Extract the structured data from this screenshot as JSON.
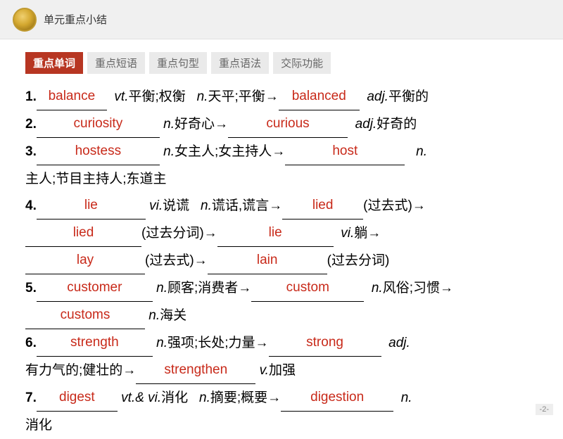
{
  "header": {
    "title": "单元重点小结"
  },
  "tabs": [
    {
      "label": "重点单词",
      "active": true
    },
    {
      "label": "重点短语",
      "active": false
    },
    {
      "label": "重点句型",
      "active": false
    },
    {
      "label": "重点语法",
      "active": false
    },
    {
      "label": "交际功能",
      "active": false
    }
  ],
  "colors": {
    "answer_color": "#c82a1a",
    "tab_active_bg": "#b73622",
    "tab_active_fg": "#ffffff",
    "tab_inactive_bg": "#eaeaea",
    "tab_inactive_fg": "#666666",
    "header_bg": "#f0f0f0",
    "text_color": "#000000"
  },
  "entries": {
    "e1": {
      "num": "1.",
      "ans1": "balance",
      "w1": 100,
      "pos1": "vt.",
      "def1": "平衡;权衡",
      "pos2": "n.",
      "def2": "天平;平衡→",
      "ans2": "balanced",
      "w2": 115,
      "pos3": "adj.",
      "def3": "平衡的"
    },
    "e2": {
      "num": "2.",
      "ans1": "curiosity",
      "w1": 175,
      "pos1": "n.",
      "def1": "好奇心→",
      "ans2": "curious",
      "w2": 170,
      "pos2": "adj.",
      "def2": "好奇的"
    },
    "e3": {
      "num": "3.",
      "ans1": "hostess",
      "w1": 175,
      "pos1": "n.",
      "def1": "女主人;女主持人→",
      "ans2": "host",
      "w2": 170,
      "pos2": "n.",
      "cont": "主人;节目主持人;东道主"
    },
    "e4": {
      "num": "4.",
      "ans1": "lie",
      "w1": 155,
      "pos1": "vi.",
      "def1": "说谎",
      "pos2": "n.",
      "def2": "谎话,谎言→",
      "ans2": "lied",
      "w2": 115,
      "suf2": "(过去式)→",
      "ans3": "lied",
      "w3": 165,
      "suf3": "(过去分词)→",
      "ans4": "lie",
      "w4": 165,
      "pos4": "vi.",
      "def4": "躺→",
      "ans5": "lay",
      "w5": 170,
      "suf5": "(过去式)→",
      "ans6": "lain",
      "w6": 170,
      "suf6": "(过去分词)"
    },
    "e5": {
      "num": "5.",
      "ans1": "customer",
      "w1": 165,
      "pos1": "n.",
      "def1": "顾客;消费者→",
      "ans2": "custom",
      "w2": 160,
      "pos2": "n.",
      "def2": "风俗;习惯→",
      "ans3": "customs",
      "w3": 170,
      "pos3": "n.",
      "def3": "海关"
    },
    "e6": {
      "num": "6.",
      "ans1": "strength",
      "w1": 165,
      "pos1": "n.",
      "def1": "强项;长处;力量→",
      "ans2": "strong",
      "w2": 160,
      "pos2": "adj.",
      "cont": "有力气的;健壮的→",
      "ans3": "strengthen",
      "w3": 170,
      "pos3": "v.",
      "def3": "加强"
    },
    "e7": {
      "num": "7.",
      "ans1": "digest",
      "w1": 115,
      "pos1": "vt.& vi.",
      "def1": "消化",
      "pos2": "n.",
      "def2": "摘要;概要→",
      "ans2": "digestion",
      "w2": 160,
      "pos3": "n.",
      "cont": "消化"
    }
  },
  "page_number": "-2-"
}
